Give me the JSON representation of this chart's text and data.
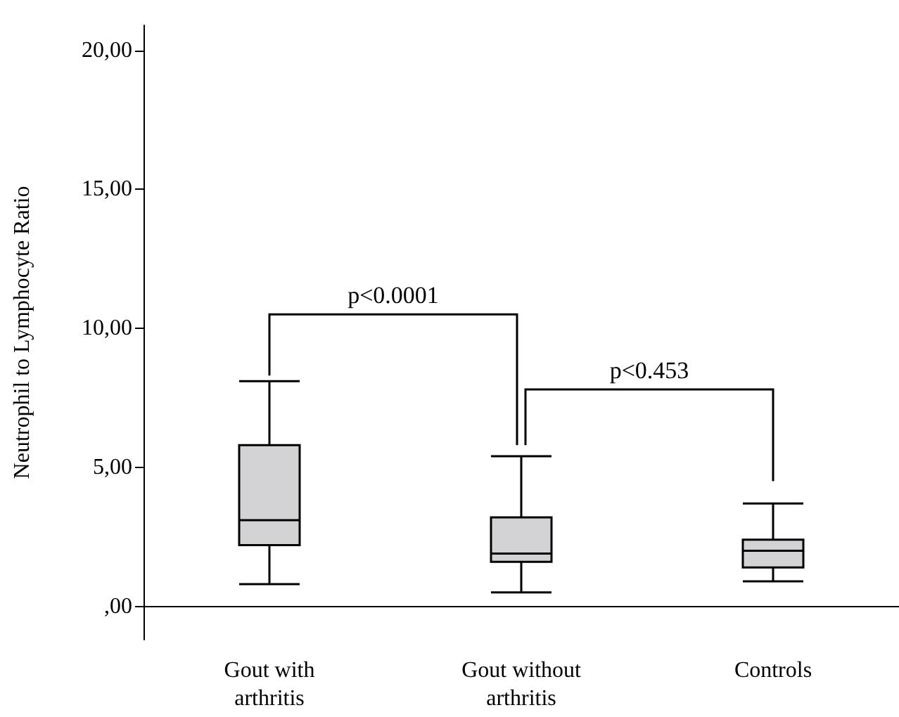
{
  "chart_data": {
    "type": "box",
    "ylabel": "Neutrophil to Lymphocyte Ratio",
    "categories": [
      "Gout with\narthritis",
      "Gout without\narthritis",
      "Controls"
    ],
    "color": "#d3d3d5",
    "boxes": [
      {
        "low": 0.8,
        "q1": 2.2,
        "median": 3.1,
        "q3": 5.8,
        "high": 8.1
      },
      {
        "low": 0.5,
        "q1": 1.6,
        "median": 1.9,
        "q3": 3.2,
        "high": 5.4
      },
      {
        "low": 0.9,
        "q1": 1.4,
        "median": 2.0,
        "q3": 2.4,
        "high": 3.7
      }
    ],
    "ylim": [
      -1.2,
      20.9
    ],
    "yticks": [
      {
        "value": 0,
        "label": ",00"
      },
      {
        "value": 5,
        "label": "5,00"
      },
      {
        "value": 10,
        "label": "10,00"
      },
      {
        "value": 15,
        "label": "15,00"
      },
      {
        "value": 20,
        "label": "20,00"
      }
    ],
    "grid": false,
    "annotations": [
      "p<0.0001",
      "p<0.453"
    ]
  }
}
